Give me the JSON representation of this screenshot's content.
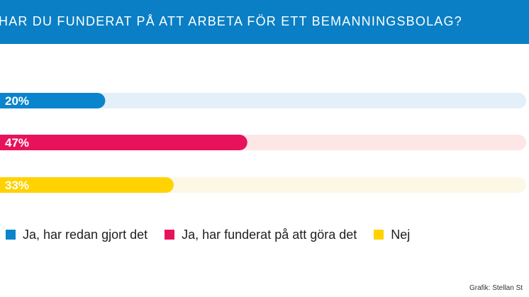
{
  "chart_data": {
    "type": "bar",
    "orientation": "horizontal",
    "title": "HAR DU FUNDERAT PÅ ATT ARBETA FÖR ETT BEMANNINGSBOLAG?",
    "categories": [
      "Ja, har redan gjort det",
      "Ja, har funderat på att göra det",
      "Nej"
    ],
    "values": [
      20,
      47,
      33
    ],
    "value_labels": [
      "20%",
      "47%",
      "33%"
    ],
    "xlim": [
      0,
      100
    ],
    "colors": [
      "#0a84cc",
      "#e8125c",
      "#ffd200"
    ],
    "track_colors": [
      "#e3eff9",
      "#fde6e6",
      "#fdf8e6"
    ],
    "legend": [
      {
        "label": "Ja, har redan gjort det",
        "color": "#0a84cc"
      },
      {
        "label": "Ja, har funderat på att göra det",
        "color": "#e8125c"
      },
      {
        "label": "Nej",
        "color": "#ffd200"
      }
    ],
    "grid": false
  },
  "header": {
    "background": "#0a7fc5"
  },
  "credit": "Grafik: Stellan St"
}
